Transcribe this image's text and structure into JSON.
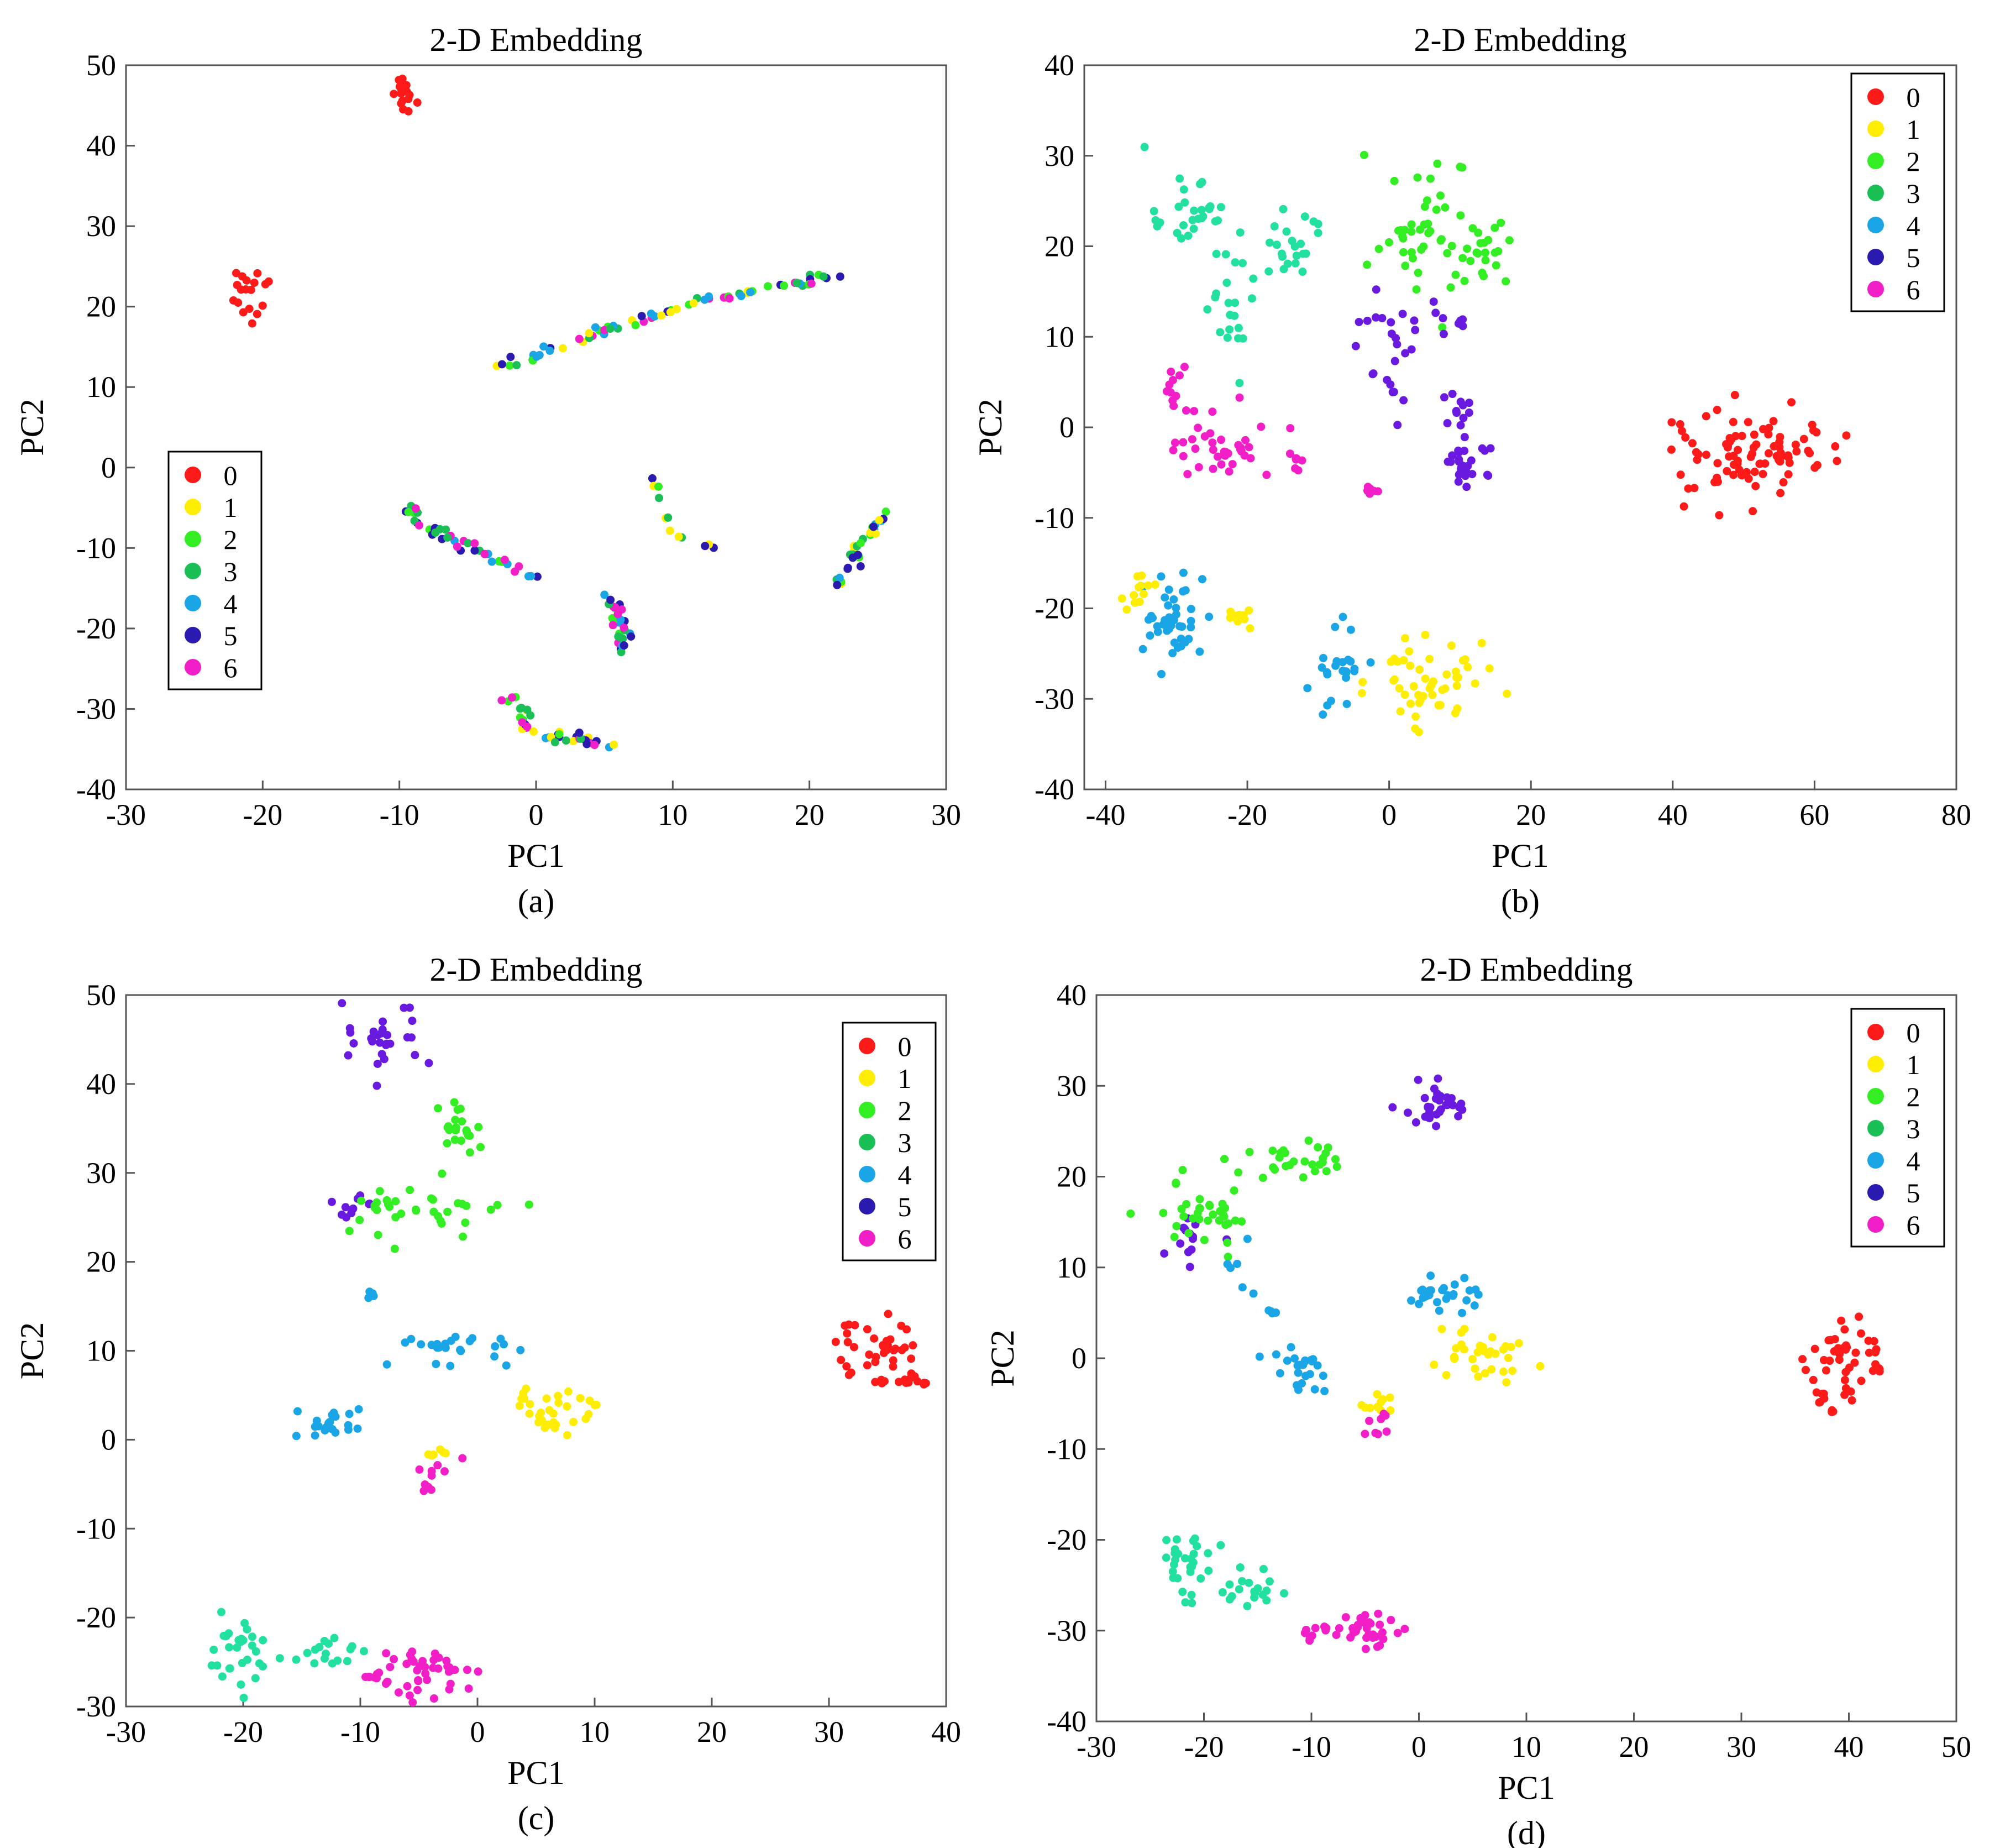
{
  "colors": {
    "0": "#ff1a1a",
    "1": "#ffee00",
    "2": "#33ee22",
    "3": "#1abf55",
    "4": "#1aa6e6",
    "5": "#2a1ab0",
    "6": "#f21ec8",
    "teal": "#22e0a0",
    "purple": "#6a1ae0"
  },
  "chart_data": [
    {
      "type": "scatter",
      "panel_label": "(a)",
      "title": "2-D Embedding",
      "xlabel": "PC1",
      "ylabel": "PC2",
      "xlim": [
        -30,
        30
      ],
      "ylim": [
        -40,
        50
      ],
      "xticks": [
        -30,
        -20,
        -10,
        0,
        10,
        20,
        30
      ],
      "yticks": [
        -40,
        -30,
        -20,
        -10,
        0,
        10,
        20,
        30,
        40,
        50
      ],
      "legend": {
        "position": "center-left",
        "entries": [
          "0",
          "1",
          "2",
          "3",
          "4",
          "5",
          "6"
        ]
      },
      "clusters": [
        {
          "class": "0",
          "cx": -9.5,
          "cy": 46.5,
          "sx": 0.5,
          "sy": 1.4,
          "n": 18
        },
        {
          "class": "0",
          "cx": -21,
          "cy": 21,
          "sx": 0.8,
          "sy": 1.6,
          "n": 18
        },
        {
          "arc": [
            [
              -3,
              12
            ],
            [
              5,
              17
            ],
            [
              12,
              20.5
            ],
            [
              22,
              24
            ]
          ],
          "classes": [
            "5",
            "2",
            "4",
            "6",
            "3",
            "1"
          ],
          "n": 70,
          "noise": 0.3
        },
        {
          "arc": [
            [
              -10,
              -5
            ],
            [
              -5,
              -10
            ],
            [
              0,
              -13.5
            ]
          ],
          "classes": [
            "4",
            "5",
            "3",
            "2",
            "6"
          ],
          "n": 40,
          "noise": 0.4
        },
        {
          "arc": [
            [
              5,
              -16
            ],
            [
              6.5,
              -20
            ],
            [
              6,
              -23.5
            ]
          ],
          "classes": [
            "6",
            "3",
            "5",
            "2",
            "4"
          ],
          "n": 30,
          "noise": 0.3
        },
        {
          "arc": [
            [
              -2,
              -28.5
            ],
            [
              0,
              -33
            ],
            [
              6,
              -34.5
            ]
          ],
          "classes": [
            "4",
            "5",
            "2",
            "3",
            "6",
            "1"
          ],
          "n": 40,
          "noise": 0.3
        },
        {
          "arc": [
            [
              8.5,
              -0.5
            ],
            [
              9.5,
              -6
            ],
            [
              11,
              -10
            ],
            [
              14,
              -9.5
            ]
          ],
          "classes": [
            "1",
            "5",
            "2",
            "3"
          ],
          "n": 12,
          "noise": 0.2
        },
        {
          "arc": [
            [
              22,
              -15
            ],
            [
              23.5,
              -10
            ],
            [
              26,
              -5
            ]
          ],
          "classes": [
            "3",
            "2",
            "1",
            "4",
            "5"
          ],
          "n": 30,
          "noise": 0.3
        }
      ]
    },
    {
      "type": "scatter",
      "panel_label": "(b)",
      "title": "2-D Embedding",
      "xlabel": "PC1",
      "ylabel": "PC2",
      "xlim": [
        -43,
        80
      ],
      "ylim": [
        -40,
        40
      ],
      "xticks": [
        -40,
        -20,
        0,
        20,
        40,
        60,
        80
      ],
      "yticks": [
        -40,
        -30,
        -20,
        -10,
        0,
        10,
        20,
        30,
        40
      ],
      "legend": {
        "position": "top-right",
        "entries": [
          "0",
          "1",
          "2",
          "3",
          "4",
          "5",
          "6"
        ]
      },
      "clusters": [
        {
          "class": "0",
          "cx": 52,
          "cy": -3,
          "sx": 5.5,
          "sy": 2.4,
          "n": 90
        },
        {
          "class": "teal",
          "cx": -28,
          "cy": 24,
          "sx": 2.2,
          "sy": 2.2,
          "n": 28
        },
        {
          "class": "teal",
          "cx": -22,
          "cy": 13,
          "sx": 1.6,
          "sy": 4,
          "n": 22
        },
        {
          "class": "teal",
          "cx": -14,
          "cy": 20,
          "sx": 2.4,
          "sy": 2.2,
          "n": 22
        },
        {
          "class": "2",
          "cx": 5,
          "cy": 22,
          "sx": 3.5,
          "sy": 4,
          "n": 45
        },
        {
          "class": "2",
          "cx": 14.5,
          "cy": 19,
          "sx": 1.5,
          "sy": 2.2,
          "n": 20
        },
        {
          "class": "purple",
          "cx": 0,
          "cy": 11,
          "sx": 3.5,
          "sy": 1.5,
          "n": 14
        },
        {
          "class": "purple",
          "cx": 1,
          "cy": 5,
          "sx": 1.4,
          "sy": 2,
          "n": 10
        },
        {
          "class": "purple",
          "cx": 10,
          "cy": 0,
          "sx": 1.6,
          "sy": 2.4,
          "n": 18
        },
        {
          "class": "purple",
          "cx": 11,
          "cy": -4.5,
          "sx": 1.5,
          "sy": 1.6,
          "n": 18
        },
        {
          "class": "purple",
          "cx": 8,
          "cy": 12.5,
          "sx": 1.5,
          "sy": 1.2,
          "n": 8
        },
        {
          "class": "6",
          "cx": -24,
          "cy": -2,
          "sx": 4.5,
          "sy": 2.2,
          "n": 40
        },
        {
          "class": "6",
          "cx": -30,
          "cy": 5,
          "sx": 0.8,
          "sy": 1.8,
          "n": 10
        },
        {
          "class": "6",
          "cx": -13,
          "cy": -4,
          "sx": 0.6,
          "sy": 0.8,
          "n": 6
        },
        {
          "class": "6",
          "cx": -2,
          "cy": -7,
          "sx": 1,
          "sy": 0.6,
          "n": 6
        },
        {
          "class": "4",
          "cx": -31,
          "cy": -21,
          "sx": 2.6,
          "sy": 2.6,
          "n": 42
        },
        {
          "class": "4",
          "cx": -7,
          "cy": -26,
          "sx": 3,
          "sy": 2,
          "n": 24
        },
        {
          "class": "1",
          "cx": -35,
          "cy": -18,
          "sx": 1,
          "sy": 1.3,
          "n": 12
        },
        {
          "class": "1",
          "cx": -21,
          "cy": -21,
          "sx": 1.3,
          "sy": 0.8,
          "n": 10
        },
        {
          "class": "1",
          "cx": 5,
          "cy": -28,
          "sx": 4,
          "sy": 2.5,
          "n": 50
        }
      ]
    },
    {
      "type": "scatter",
      "panel_label": "(c)",
      "title": "2-D Embedding",
      "xlabel": "PC1",
      "ylabel": "PC2",
      "xlim": [
        -30,
        40
      ],
      "ylim": [
        -30,
        50
      ],
      "xticks": [
        -30,
        -20,
        -10,
        0,
        10,
        20,
        30,
        40
      ],
      "yticks": [
        -30,
        -20,
        -10,
        0,
        10,
        20,
        30,
        40,
        50
      ],
      "legend": {
        "position": "top-right",
        "entries": [
          "0",
          "1",
          "2",
          "3",
          "4",
          "5",
          "6"
        ]
      },
      "clusters": [
        {
          "class": "purple",
          "cx": -8,
          "cy": 45,
          "sx": 1.6,
          "sy": 1.8,
          "n": 28
        },
        {
          "class": "purple",
          "cx": -10.5,
          "cy": 26,
          "sx": 1.2,
          "sy": 0.8,
          "n": 10
        },
        {
          "class": "2",
          "cx": -1.5,
          "cy": 35,
          "sx": 0.8,
          "sy": 2.2,
          "n": 22
        },
        {
          "class": "2",
          "cx": -5,
          "cy": 26,
          "sx": 2.8,
          "sy": 1.6,
          "n": 35
        },
        {
          "class": "4",
          "cx": -2,
          "cy": 10,
          "sx": 2.4,
          "sy": 1,
          "n": 24
        },
        {
          "class": "4",
          "cx": -12,
          "cy": 2,
          "sx": 1.3,
          "sy": 0.8,
          "n": 22
        },
        {
          "class": "4",
          "cx": -9,
          "cy": 16,
          "sx": 0.3,
          "sy": 0.5,
          "n": 4
        },
        {
          "class": "1",
          "cx": 7,
          "cy": 3,
          "sx": 2,
          "sy": 1.6,
          "n": 32
        },
        {
          "class": "1",
          "cx": -3.5,
          "cy": -2,
          "sx": 0.5,
          "sy": 0.5,
          "n": 6
        },
        {
          "class": "6",
          "cx": -3,
          "cy": -3,
          "sx": 1,
          "sy": 1,
          "n": 6
        },
        {
          "class": "6",
          "cx": -4.5,
          "cy": -5,
          "sx": 0.3,
          "sy": 0.4,
          "n": 4
        },
        {
          "class": "0",
          "cx": 34,
          "cy": 10,
          "sx": 1.8,
          "sy": 2.2,
          "n": 40
        },
        {
          "class": "0",
          "cx": 37,
          "cy": 6.5,
          "sx": 0.8,
          "sy": 0.7,
          "n": 12
        },
        {
          "class": "teal",
          "cx": -20,
          "cy": -23,
          "sx": 1.3,
          "sy": 2.5,
          "n": 30
        },
        {
          "class": "teal",
          "cx": -13,
          "cy": -24,
          "sx": 1.5,
          "sy": 1,
          "n": 16
        },
        {
          "class": "6",
          "cx": -4,
          "cy": -26,
          "sx": 2.5,
          "sy": 1.5,
          "n": 40
        },
        {
          "class": "6",
          "cx": -8,
          "cy": -27,
          "sx": 1,
          "sy": 0.5,
          "n": 8
        }
      ]
    },
    {
      "type": "scatter",
      "panel_label": "(d)",
      "title": "2-D Embedding",
      "xlabel": "PC1",
      "ylabel": "PC2",
      "xlim": [
        -30,
        50
      ],
      "ylim": [
        -40,
        40
      ],
      "xticks": [
        -30,
        -20,
        -10,
        0,
        10,
        20,
        30,
        40,
        50
      ],
      "yticks": [
        -40,
        -30,
        -20,
        -10,
        0,
        10,
        20,
        30,
        40
      ],
      "legend": {
        "position": "top-right",
        "entries": [
          "0",
          "1",
          "2",
          "3",
          "4",
          "5",
          "6"
        ]
      },
      "clusters": [
        {
          "class": "purple",
          "cx": 2,
          "cy": 28,
          "sx": 1.8,
          "sy": 1.3,
          "n": 32
        },
        {
          "class": "purple",
          "cx": -21,
          "cy": 13,
          "sx": 1.3,
          "sy": 1.5,
          "n": 14
        },
        {
          "class": "2",
          "cx": -20,
          "cy": 16,
          "sx": 2.5,
          "sy": 1.6,
          "n": 35
        },
        {
          "class": "2",
          "cx": -12,
          "cy": 21.5,
          "sx": 3,
          "sy": 1,
          "n": 28
        },
        {
          "class": "4",
          "cx": 1.5,
          "cy": 7,
          "sx": 2,
          "sy": 1.2,
          "n": 26
        },
        {
          "class": "4",
          "cx": -11,
          "cy": -1,
          "sx": 1.4,
          "sy": 1,
          "n": 24
        },
        {
          "class": "4",
          "cx": -16,
          "cy": 10,
          "sx": 1,
          "sy": 1.6,
          "n": 6
        },
        {
          "class": "4",
          "cx": -13.5,
          "cy": 5,
          "sx": 0.4,
          "sy": 0.5,
          "n": 4
        },
        {
          "class": "1",
          "cx": 6,
          "cy": 0.5,
          "sx": 2.2,
          "sy": 1.3,
          "n": 32
        },
        {
          "class": "1",
          "cx": -4,
          "cy": -5,
          "sx": 1,
          "sy": 0.7,
          "n": 10
        },
        {
          "class": "6",
          "cx": -4,
          "cy": -7,
          "sx": 1,
          "sy": 0.7,
          "n": 8
        },
        {
          "class": "0",
          "cx": 39,
          "cy": 0,
          "sx": 1.2,
          "sy": 2.7,
          "n": 36
        },
        {
          "class": "0",
          "cx": 42.5,
          "cy": 0,
          "sx": 0.5,
          "sy": 1.2,
          "n": 10
        },
        {
          "class": "0",
          "cx": 37.5,
          "cy": -4.5,
          "sx": 0.4,
          "sy": 0.4,
          "n": 6
        },
        {
          "class": "teal",
          "cx": -21.5,
          "cy": -23,
          "sx": 1.5,
          "sy": 2.2,
          "n": 30
        },
        {
          "class": "teal",
          "cx": -15,
          "cy": -25,
          "sx": 1.8,
          "sy": 1.2,
          "n": 18
        },
        {
          "class": "6",
          "cx": -4.5,
          "cy": -30,
          "sx": 1.8,
          "sy": 1.2,
          "n": 30
        },
        {
          "class": "6",
          "cx": -9,
          "cy": -30.5,
          "sx": 1.2,
          "sy": 0.6,
          "n": 10
        }
      ]
    }
  ]
}
